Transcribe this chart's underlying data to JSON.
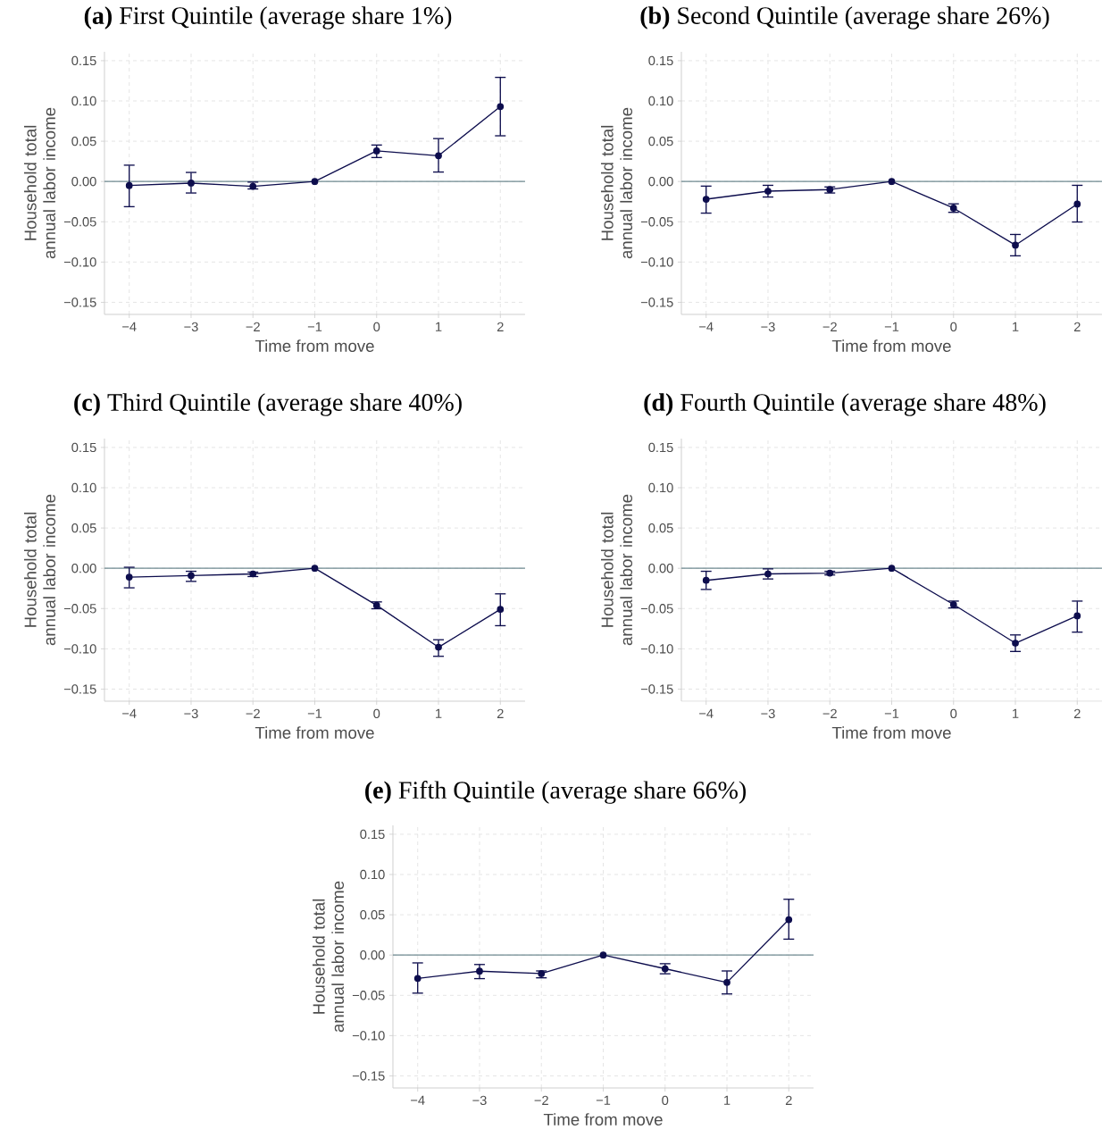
{
  "chart_data": [
    {
      "type": "line",
      "title": "**(a)** First Quintile (average share 1%)",
      "xlabel": "Time from move",
      "ylabel": "Household total annual labor income",
      "grid": true,
      "marker": "circle",
      "x": [
        -4,
        -3,
        -2,
        -1,
        0,
        1,
        2
      ],
      "xlim": [
        -4.4,
        2.4
      ],
      "ylim": [
        -0.165,
        0.161
      ],
      "xticks": [
        {
          "value": -4,
          "label": "−4"
        },
        {
          "value": -3,
          "label": "−3"
        },
        {
          "value": -2,
          "label": "−2"
        },
        {
          "value": -1,
          "label": "−1"
        },
        {
          "value": 0,
          "label": "0"
        },
        {
          "value": 1,
          "label": "1"
        },
        {
          "value": 2,
          "label": "2"
        }
      ],
      "yticks": [
        {
          "value": -0.15,
          "label": "−0.15"
        },
        {
          "value": -0.1,
          "label": "−0.10"
        },
        {
          "value": -0.05,
          "label": "−0.05"
        },
        {
          "value": 0,
          "label": "0.00"
        },
        {
          "value": 0.05,
          "label": "0.05"
        },
        {
          "value": 0.1,
          "label": "0.10"
        },
        {
          "value": 0.15,
          "label": "0.15"
        }
      ],
      "ref_lines": [
        {
          "axis": "y",
          "value": 0,
          "color": "#6f8a91"
        }
      ],
      "series": [
        {
          "color": "#0d0d4d",
          "values": [
            -0.005,
            -0.002,
            -0.006,
            0,
            0.038,
            0.032,
            0.093
          ],
          "errors": [
            [
              -0.032,
              0.021
            ],
            [
              -0.015,
              0.012
            ],
            [
              -0.01,
              0.0
            ],
            null,
            [
              0.029,
              0.046
            ],
            [
              0.011,
              0.054
            ],
            [
              0.056,
              0.13
            ]
          ]
        }
      ]
    },
    {
      "type": "line",
      "title": "**(b)** Second Quintile (average share 26%)",
      "xlabel": "Time from move",
      "ylabel": "Household total annual labor income",
      "grid": true,
      "marker": "circle",
      "x": [
        -4,
        -3,
        -2,
        -1,
        0,
        1,
        2
      ],
      "xlim": [
        -4.4,
        2.4
      ],
      "ylim": [
        -0.165,
        0.161
      ],
      "xticks": [
        {
          "value": -4,
          "label": "−4"
        },
        {
          "value": -3,
          "label": "−3"
        },
        {
          "value": -2,
          "label": "−2"
        },
        {
          "value": -1,
          "label": "−1"
        },
        {
          "value": 0,
          "label": "0"
        },
        {
          "value": 1,
          "label": "1"
        },
        {
          "value": 2,
          "label": "2"
        }
      ],
      "yticks": [
        {
          "value": -0.15,
          "label": "−0.15"
        },
        {
          "value": -0.1,
          "label": "−0.10"
        },
        {
          "value": -0.05,
          "label": "−0.05"
        },
        {
          "value": 0,
          "label": "0.00"
        },
        {
          "value": 0.05,
          "label": "0.05"
        },
        {
          "value": 0.1,
          "label": "0.10"
        },
        {
          "value": 0.15,
          "label": "0.15"
        }
      ],
      "ref_lines": [
        {
          "axis": "y",
          "value": 0,
          "color": "#6f8a91"
        }
      ],
      "series": [
        {
          "color": "#0d0d4d",
          "values": [
            -0.022,
            -0.012,
            -0.01,
            0,
            -0.033,
            -0.079,
            -0.028
          ],
          "errors": [
            [
              -0.04,
              -0.005
            ],
            [
              -0.02,
              -0.004
            ],
            [
              -0.015,
              -0.006
            ],
            null,
            [
              -0.039,
              -0.027
            ],
            [
              -0.093,
              -0.065
            ],
            [
              -0.051,
              -0.004
            ]
          ]
        }
      ]
    },
    {
      "type": "line",
      "title": "**(c)** Third Quintile (average share 40%)",
      "xlabel": "Time from move",
      "ylabel": "Household total annual labor income",
      "grid": true,
      "marker": "circle",
      "x": [
        -4,
        -3,
        -2,
        -1,
        0,
        1,
        2
      ],
      "xlim": [
        -4.4,
        2.4
      ],
      "ylim": [
        -0.165,
        0.161
      ],
      "xticks": [
        {
          "value": -4,
          "label": "−4"
        },
        {
          "value": -3,
          "label": "−3"
        },
        {
          "value": -2,
          "label": "−2"
        },
        {
          "value": -1,
          "label": "−1"
        },
        {
          "value": 0,
          "label": "0"
        },
        {
          "value": 1,
          "label": "1"
        },
        {
          "value": 2,
          "label": "2"
        }
      ],
      "yticks": [
        {
          "value": -0.15,
          "label": "−0.15"
        },
        {
          "value": -0.1,
          "label": "−0.10"
        },
        {
          "value": -0.05,
          "label": "−0.05"
        },
        {
          "value": 0,
          "label": "0.00"
        },
        {
          "value": 0.05,
          "label": "0.05"
        },
        {
          "value": 0.1,
          "label": "0.10"
        },
        {
          "value": 0.15,
          "label": "0.15"
        }
      ],
      "ref_lines": [
        {
          "axis": "y",
          "value": 0,
          "color": "#6f8a91"
        }
      ],
      "series": [
        {
          "color": "#0d0d4d",
          "values": [
            -0.011,
            -0.009,
            -0.007,
            0,
            -0.046,
            -0.098,
            -0.051
          ],
          "errors": [
            [
              -0.025,
              0.002
            ],
            [
              -0.017,
              -0.003
            ],
            [
              -0.011,
              -0.004
            ],
            null,
            [
              -0.051,
              -0.041
            ],
            [
              -0.11,
              -0.088
            ],
            [
              -0.072,
              -0.031
            ]
          ]
        }
      ]
    },
    {
      "type": "line",
      "title": "**(d)** Fourth Quintile (average share 48%)",
      "xlabel": "Time from move",
      "ylabel": "Household total annual labor income",
      "grid": true,
      "marker": "circle",
      "x": [
        -4,
        -3,
        -2,
        -1,
        0,
        1,
        2
      ],
      "xlim": [
        -4.4,
        2.4
      ],
      "ylim": [
        -0.165,
        0.161
      ],
      "xticks": [
        {
          "value": -4,
          "label": "−4"
        },
        {
          "value": -3,
          "label": "−3"
        },
        {
          "value": -2,
          "label": "−2"
        },
        {
          "value": -1,
          "label": "−1"
        },
        {
          "value": 0,
          "label": "0"
        },
        {
          "value": 1,
          "label": "1"
        },
        {
          "value": 2,
          "label": "2"
        }
      ],
      "yticks": [
        {
          "value": -0.15,
          "label": "−0.15"
        },
        {
          "value": -0.1,
          "label": "−0.10"
        },
        {
          "value": -0.05,
          "label": "−0.05"
        },
        {
          "value": 0,
          "label": "0.00"
        },
        {
          "value": 0.05,
          "label": "0.05"
        },
        {
          "value": 0.1,
          "label": "0.10"
        },
        {
          "value": 0.15,
          "label": "0.15"
        }
      ],
      "ref_lines": [
        {
          "axis": "y",
          "value": 0,
          "color": "#6f8a91"
        }
      ],
      "series": [
        {
          "color": "#0d0d4d",
          "values": [
            -0.015,
            -0.007,
            -0.006,
            0,
            -0.045,
            -0.093,
            -0.059
          ],
          "errors": [
            [
              -0.027,
              -0.003
            ],
            [
              -0.014,
              0.0
            ],
            [
              -0.009,
              -0.003
            ],
            null,
            [
              -0.05,
              -0.04
            ],
            [
              -0.104,
              -0.082
            ],
            [
              -0.08,
              -0.04
            ]
          ]
        }
      ]
    },
    {
      "type": "line",
      "title": "**(e)** Fifth Quintile (average share 66%)",
      "xlabel": "Time from move",
      "ylabel": "Household total annual labor income",
      "grid": true,
      "marker": "circle",
      "x": [
        -4,
        -3,
        -2,
        -1,
        0,
        1,
        2
      ],
      "xlim": [
        -4.4,
        2.4
      ],
      "ylim": [
        -0.165,
        0.161
      ],
      "xticks": [
        {
          "value": -4,
          "label": "−4"
        },
        {
          "value": -3,
          "label": "−3"
        },
        {
          "value": -2,
          "label": "−2"
        },
        {
          "value": -1,
          "label": "−1"
        },
        {
          "value": 0,
          "label": "0"
        },
        {
          "value": 1,
          "label": "1"
        },
        {
          "value": 2,
          "label": "2"
        }
      ],
      "yticks": [
        {
          "value": -0.15,
          "label": "−0.15"
        },
        {
          "value": -0.1,
          "label": "−0.10"
        },
        {
          "value": -0.05,
          "label": "−0.05"
        },
        {
          "value": 0,
          "label": "0.00"
        },
        {
          "value": 0.05,
          "label": "0.05"
        },
        {
          "value": 0.1,
          "label": "0.10"
        },
        {
          "value": 0.15,
          "label": "0.15"
        }
      ],
      "ref_lines": [
        {
          "axis": "y",
          "value": 0,
          "color": "#6f8a91"
        }
      ],
      "series": [
        {
          "color": "#0d0d4d",
          "values": [
            -0.029,
            -0.02,
            -0.023,
            0,
            -0.017,
            -0.034,
            0.044
          ],
          "errors": [
            [
              -0.048,
              -0.009
            ],
            [
              -0.03,
              -0.011
            ],
            [
              -0.029,
              -0.019
            ],
            null,
            [
              -0.024,
              -0.01
            ],
            [
              -0.049,
              -0.019
            ],
            [
              0.019,
              0.07
            ]
          ]
        }
      ]
    }
  ]
}
